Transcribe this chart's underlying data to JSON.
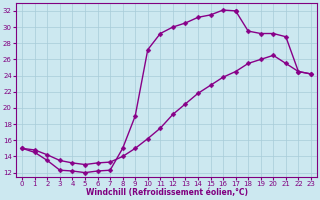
{
  "title": "",
  "xlabel": "Windchill (Refroidissement éolien,°C)",
  "ylabel": "",
  "bg_color": "#cce8f0",
  "grid_color": "#a8ccd8",
  "line_color": "#880088",
  "marker": "D",
  "markersize": 2.5,
  "linewidth": 1.0,
  "xlim": [
    -0.5,
    23.5
  ],
  "ylim": [
    11.5,
    33
  ],
  "xticks": [
    0,
    1,
    2,
    3,
    4,
    5,
    6,
    7,
    8,
    9,
    10,
    11,
    12,
    13,
    14,
    15,
    16,
    17,
    18,
    19,
    20,
    21,
    22,
    23
  ],
  "yticks": [
    12,
    14,
    16,
    18,
    20,
    22,
    24,
    26,
    28,
    30,
    32
  ],
  "curve1_x": [
    0,
    1,
    2,
    3,
    4,
    5,
    6,
    7,
    8,
    9,
    10,
    11,
    12,
    13,
    14,
    15,
    16,
    17
  ],
  "curve1_y": [
    15.0,
    14.5,
    13.5,
    12.3,
    12.2,
    12.0,
    12.2,
    12.3,
    15.0,
    19.0,
    27.2,
    29.2,
    30.0,
    30.5,
    31.2,
    31.5,
    32.1,
    32.0
  ],
  "curve2_x": [
    0,
    1,
    2,
    3,
    4,
    5,
    6,
    7,
    8,
    9,
    10,
    11,
    12,
    13,
    14,
    15,
    16,
    17,
    18,
    19,
    20,
    21,
    22,
    23
  ],
  "curve2_y": [
    15.0,
    14.8,
    14.2,
    13.5,
    13.2,
    13.0,
    13.2,
    13.3,
    14.0,
    15.0,
    16.2,
    17.5,
    19.2,
    20.5,
    21.8,
    22.8,
    23.8,
    24.5,
    25.5,
    26.0,
    26.5,
    25.5,
    24.5,
    24.2
  ],
  "curve3_x": [
    17,
    18,
    19,
    20,
    21,
    22,
    23
  ],
  "curve3_y": [
    32.0,
    29.5,
    29.2,
    29.2,
    28.8,
    24.5,
    24.2
  ]
}
